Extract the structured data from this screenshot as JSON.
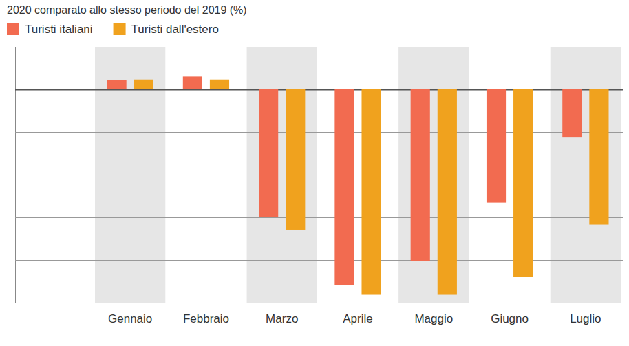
{
  "chart_data": {
    "type": "bar",
    "title": "2020 comparato allo stesso periodo del 2019 (%)",
    "categories": [
      "Gennaio",
      "Febbraio",
      "Marzo",
      "Aprile",
      "Maggio",
      "Giugno",
      "Luglio"
    ],
    "series": [
      {
        "name": "Turisti italiani",
        "color": "#f26b50",
        "values": [
          4.2,
          6.0,
          -59.8,
          -91.7,
          -80.4,
          -53.1,
          -22.3
        ]
      },
      {
        "name": "Turisti dall'estero",
        "color": "#f0a21e",
        "values": [
          4.6,
          4.6,
          -65.8,
          -96.3,
          -96.3,
          -87.8,
          -63.4
        ]
      }
    ],
    "ylim": [
      -100,
      20
    ],
    "yticks": [
      -100,
      -80,
      -60,
      -40,
      -20,
      0,
      20
    ],
    "grid": true,
    "legend": "top-left",
    "tick_labels": "x"
  }
}
